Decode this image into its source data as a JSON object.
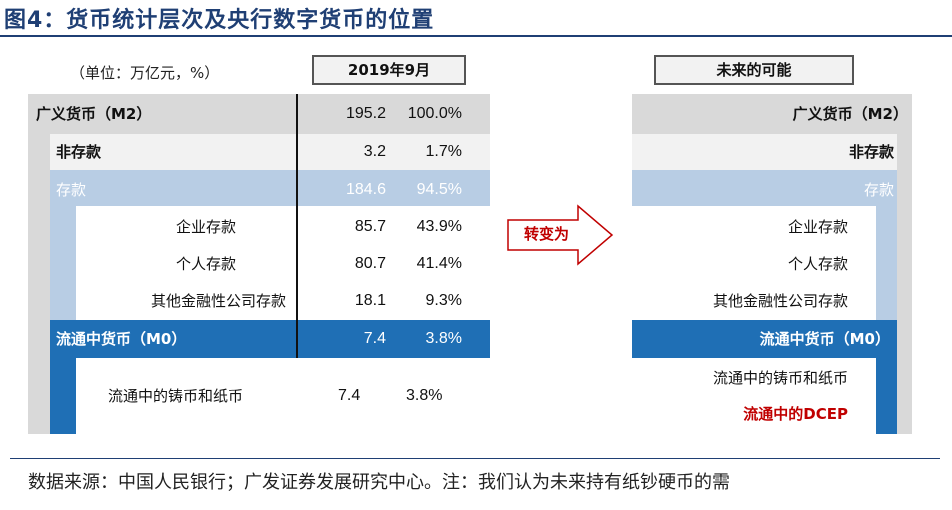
{
  "title": "图4：货币统计层次及央行数字货币的位置",
  "unit_note": "（单位：万亿元，%）",
  "left_header": "2019年9月",
  "right_header": "未来的可能",
  "arrow_label": "转变为",
  "left_rows": [
    {
      "label": "广义货币（M2）",
      "value": "195.2",
      "pct": "100.0%"
    },
    {
      "label": "非存款",
      "value": "3.2",
      "pct": "1.7%"
    },
    {
      "label": "存款",
      "value": "184.6",
      "pct": "94.5%"
    },
    {
      "label": "企业存款",
      "value": "85.7",
      "pct": "43.9%"
    },
    {
      "label": "个人存款",
      "value": "80.7",
      "pct": "41.4%"
    },
    {
      "label": "其他金融性公司存款",
      "value": "18.1",
      "pct": "9.3%"
    },
    {
      "label": "流通中货币（M0）",
      "value": "7.4",
      "pct": "3.8%"
    },
    {
      "label": "流通中的铸币和纸币",
      "value": "7.4",
      "pct": "3.8%"
    }
  ],
  "right_rows": [
    "广义货币（M2）",
    "非存款",
    "存款",
    "企业存款",
    "个人存款",
    "其他金融性公司存款",
    "流通中货币（M0）",
    "流通中的铸币和纸币",
    "流通中的DCEP"
  ],
  "footnote": "数据来源：中国人民银行；广发证券发展研究中心。注：我们认为未来持有纸钞硬币的需",
  "colors": {
    "navy": "#1f3f74",
    "blue": "#1f6fb5",
    "light_blue": "#b8cde4",
    "gray": "#d9d9d9",
    "light_gray": "#f2f2f2",
    "red": "#c00000"
  }
}
